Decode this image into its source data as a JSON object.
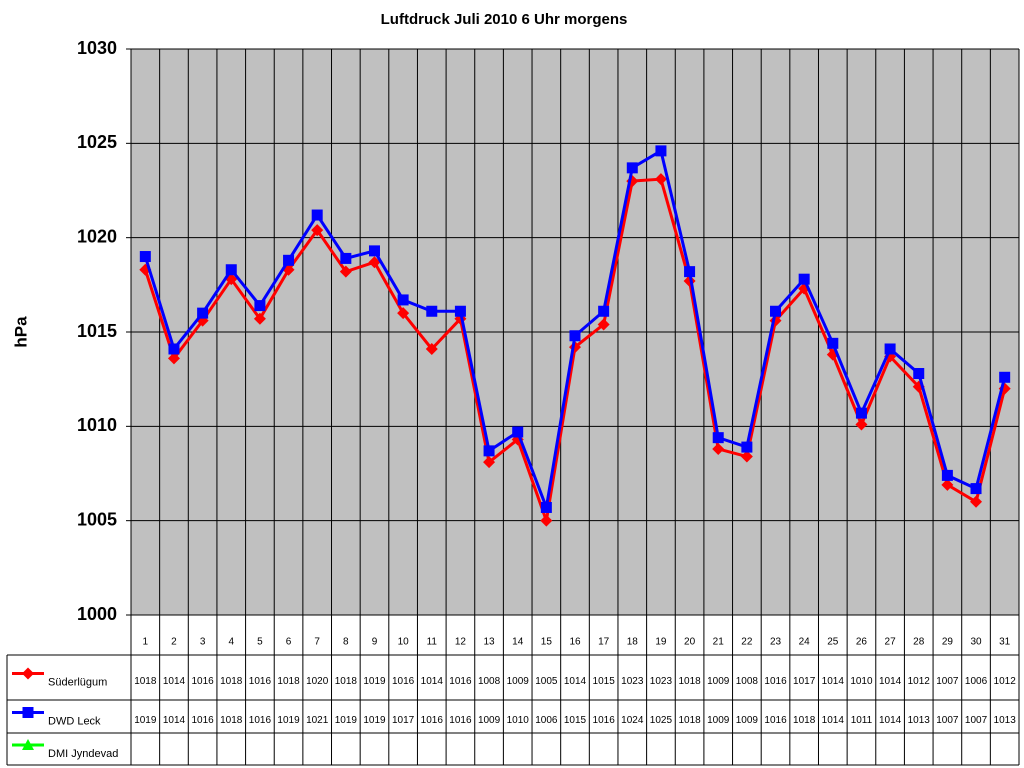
{
  "chart_data": {
    "type": "line",
    "title": "Luftdruck Juli 2010 6 Uhr morgens",
    "y_label": "hPa",
    "categories": [
      "1",
      "2",
      "3",
      "4",
      "5",
      "6",
      "7",
      "8",
      "9",
      "10",
      "11",
      "12",
      "13",
      "14",
      "15",
      "16",
      "17",
      "18",
      "19",
      "20",
      "21",
      "22",
      "23",
      "24",
      "25",
      "26",
      "27",
      "28",
      "29",
      "30",
      "31"
    ],
    "series": [
      {
        "name": "Süderlügum",
        "color": "#ff0000",
        "marker": "diamond",
        "values": [
          1018.3,
          1013.6,
          1015.6,
          1017.8,
          1015.7,
          1018.3,
          1020.4,
          1018.2,
          1018.7,
          1016.0,
          1014.1,
          1015.7,
          1008.1,
          1009.3,
          1005.0,
          1014.2,
          1015.4,
          1023.0,
          1023.1,
          1017.7,
          1008.8,
          1008.4,
          1015.6,
          1017.3,
          1013.8,
          1010.1,
          1013.7,
          1012.1,
          1006.9,
          1006.0,
          1012.0
        ],
        "value_labels": [
          "1018",
          "1014",
          "1016",
          "1018",
          "1016",
          "1018",
          "1020",
          "1018",
          "1019",
          "1016",
          "1014",
          "1016",
          "1008",
          "1009",
          "1005",
          "1014",
          "1015",
          "1023",
          "1023",
          "1018",
          "1009",
          "1008",
          "1016",
          "1017",
          "1014",
          "1010",
          "1014",
          "1012",
          "1007",
          "1006",
          "1012"
        ]
      },
      {
        "name": "DWD Leck",
        "color": "#0000ff",
        "marker": "square",
        "values": [
          1019.0,
          1014.1,
          1016.0,
          1018.3,
          1016.4,
          1018.8,
          1021.2,
          1018.9,
          1019.3,
          1016.7,
          1016.1,
          1016.1,
          1008.7,
          1009.7,
          1005.7,
          1014.8,
          1016.1,
          1023.7,
          1024.6,
          1018.2,
          1009.4,
          1008.9,
          1016.1,
          1017.8,
          1014.4,
          1010.7,
          1014.1,
          1012.8,
          1007.4,
          1006.7,
          1012.6
        ],
        "value_labels": [
          "1019",
          "1014",
          "1016",
          "1018",
          "1016",
          "1019",
          "1021",
          "1019",
          "1019",
          "1017",
          "1016",
          "1016",
          "1009",
          "1010",
          "1006",
          "1015",
          "1016",
          "1024",
          "1025",
          "1018",
          "1009",
          "1009",
          "1016",
          "1018",
          "1014",
          "1011",
          "1014",
          "1013",
          "1007",
          "1007",
          "1013"
        ]
      },
      {
        "name": "DMI Jyndevad",
        "color": "#00ff00",
        "marker": "triangle",
        "values": [
          null,
          null,
          null,
          null,
          null,
          null,
          null,
          null,
          null,
          null,
          null,
          null,
          null,
          null,
          null,
          null,
          null,
          null,
          null,
          null,
          null,
          null,
          null,
          null,
          null,
          null,
          null,
          null,
          null,
          null,
          null
        ]
      }
    ],
    "ylim": [
      1000,
      1030
    ],
    "yticks": [
      1000,
      1005,
      1010,
      1015,
      1020,
      1025,
      1030
    ],
    "grid": true,
    "plot_background": "#c0c0c0"
  }
}
